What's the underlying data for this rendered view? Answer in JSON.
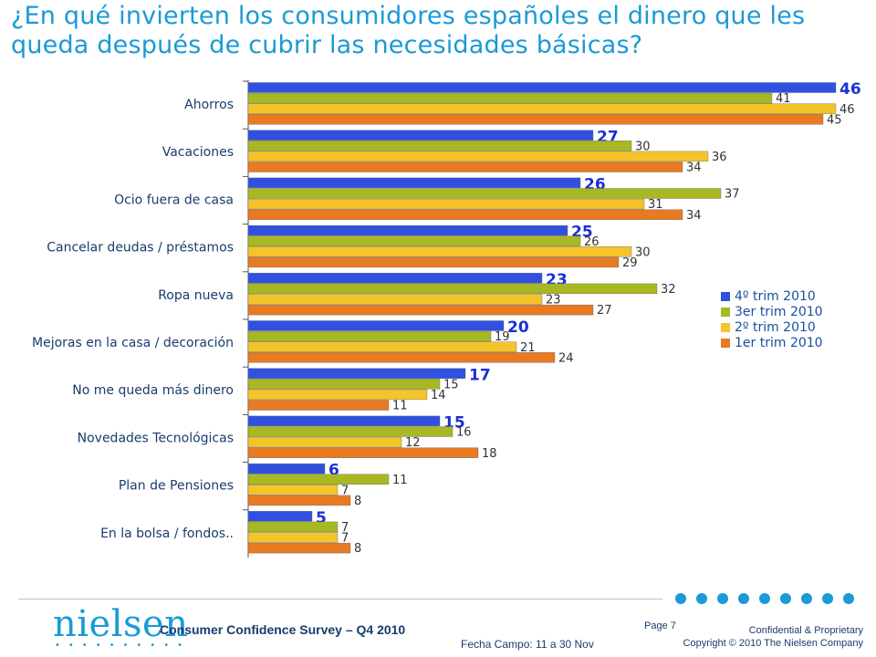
{
  "title": {
    "line1": "¿En qué invierten los consumidores españoles el dinero que les",
    "line2": "queda después de cubrir las necesidades básicas?"
  },
  "chart_data": {
    "type": "bar",
    "orientation": "horizontal",
    "categories": [
      "Ahorros",
      "Vacaciones",
      "Ocio fuera de casa",
      "Cancelar deudas / préstamos",
      "Ropa nueva",
      "Mejoras en la casa / decoración",
      "No me queda más dinero",
      "Novedades Tecnológicas",
      "Plan de Pensiones",
      "En la bolsa / fondos.."
    ],
    "series": [
      {
        "name": "4º trim 2010",
        "color": "#3050e0",
        "values": [
          46,
          27,
          26,
          25,
          23,
          20,
          17,
          15,
          6,
          5
        ]
      },
      {
        "name": "3er trim 2010",
        "color": "#a8b822",
        "values": [
          41,
          30,
          37,
          26,
          32,
          19,
          15,
          16,
          11,
          7
        ]
      },
      {
        "name": "2º trim 2010",
        "color": "#f5c42a",
        "values": [
          46,
          36,
          31,
          30,
          23,
          21,
          14,
          12,
          7,
          7
        ]
      },
      {
        "name": "1er trim 2010",
        "color": "#e87a22",
        "values": [
          45,
          34,
          34,
          29,
          27,
          24,
          11,
          18,
          8,
          8
        ]
      }
    ],
    "xlim": [
      0,
      46
    ],
    "legend_position": "right",
    "grid": false
  },
  "footer": {
    "brand": "nielsen",
    "survey": "Consumer Confidence Survey – Q4 2010",
    "fieldwork": "Fecha Campo: 11 a 30 Nov",
    "page": "Page 7",
    "confidential": "Confidential & Proprietary",
    "copyright": "Copyright © 2010 The Nielsen Company"
  }
}
